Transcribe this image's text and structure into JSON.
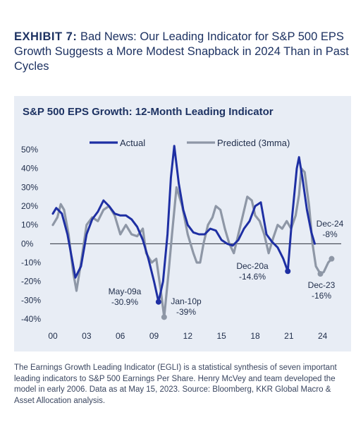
{
  "exhibit": {
    "label": "EXHIBIT 7:",
    "title": "Bad News: Our Leading Indicator for S&P 500 EPS Growth Suggests a More Modest Snapback in 2024 Than in Past Cycles"
  },
  "caption": "The Earnings Growth Leading Indicator (EGLI) is a statistical synthesis of seven important leading indicators to S&P 500 Earnings Per Share. Henry McVey and team developed the model in early 2006. Data as at May 15, 2023. Source: Bloomberg, KKR Global Macro & Asset Allocation analysis.",
  "chart_data": {
    "type": "line",
    "title": "S&P 500 EPS Growth: 12-Month Leading Indicator",
    "xlabel": "",
    "ylabel": "",
    "ylim": [
      -0.4,
      0.5
    ],
    "xlim": [
      2000,
      2025.4
    ],
    "x_ticks": [
      2000,
      2003,
      2006,
      2009,
      2012,
      2015,
      2018,
      2021,
      2024
    ],
    "x_tick_labels": [
      "00",
      "03",
      "06",
      "09",
      "12",
      "15",
      "18",
      "21",
      "24"
    ],
    "y_ticks": [
      -0.4,
      -0.3,
      -0.2,
      -0.1,
      0,
      0.1,
      0.2,
      0.3,
      0.4,
      0.5
    ],
    "y_tick_labels": [
      "-40%",
      "-30%",
      "-20%",
      "-10%",
      "0%",
      "10%",
      "20%",
      "30%",
      "40%",
      "50%"
    ],
    "grid": false,
    "legend": "top",
    "series": [
      {
        "name": "Actual",
        "color": "#1e2fa3",
        "points": [
          [
            2000.0,
            0.16
          ],
          [
            2000.3,
            0.19
          ],
          [
            2000.8,
            0.16
          ],
          [
            2001.3,
            0.05
          ],
          [
            2001.7,
            -0.08
          ],
          [
            2002.0,
            -0.18
          ],
          [
            2002.5,
            -0.12
          ],
          [
            2003.0,
            0.05
          ],
          [
            2003.5,
            0.13
          ],
          [
            2004.0,
            0.17
          ],
          [
            2004.5,
            0.23
          ],
          [
            2005.0,
            0.2
          ],
          [
            2005.5,
            0.16
          ],
          [
            2006.0,
            0.15
          ],
          [
            2006.5,
            0.15
          ],
          [
            2007.0,
            0.13
          ],
          [
            2007.5,
            0.09
          ],
          [
            2008.0,
            0.02
          ],
          [
            2008.5,
            -0.08
          ],
          [
            2009.0,
            -0.2
          ],
          [
            2009.4,
            -0.309
          ],
          [
            2009.8,
            -0.2
          ],
          [
            2010.2,
            0.05
          ],
          [
            2010.5,
            0.35
          ],
          [
            2010.8,
            0.52
          ],
          [
            2011.2,
            0.32
          ],
          [
            2011.6,
            0.18
          ],
          [
            2012.0,
            0.1
          ],
          [
            2012.5,
            0.06
          ],
          [
            2013.0,
            0.05
          ],
          [
            2013.5,
            0.05
          ],
          [
            2014.0,
            0.08
          ],
          [
            2014.5,
            0.07
          ],
          [
            2015.0,
            0.02
          ],
          [
            2015.5,
            0.0
          ],
          [
            2016.0,
            -0.01
          ],
          [
            2016.5,
            0.02
          ],
          [
            2017.0,
            0.08
          ],
          [
            2017.5,
            0.12
          ],
          [
            2018.0,
            0.2
          ],
          [
            2018.5,
            0.22
          ],
          [
            2019.0,
            0.05
          ],
          [
            2019.5,
            0.01
          ],
          [
            2020.0,
            -0.02
          ],
          [
            2020.5,
            -0.08
          ],
          [
            2020.9,
            -0.146
          ],
          [
            2021.3,
            0.15
          ],
          [
            2021.7,
            0.4
          ],
          [
            2021.9,
            0.46
          ],
          [
            2022.2,
            0.35
          ],
          [
            2022.6,
            0.18
          ],
          [
            2023.0,
            0.06
          ],
          [
            2023.3,
            0.0
          ]
        ]
      },
      {
        "name": "Predicted (3mma)",
        "color": "#8e97a6",
        "points": [
          [
            2000.0,
            0.1
          ],
          [
            2000.4,
            0.14
          ],
          [
            2000.7,
            0.21
          ],
          [
            2001.0,
            0.18
          ],
          [
            2001.4,
            0.05
          ],
          [
            2001.8,
            -0.15
          ],
          [
            2002.1,
            -0.25
          ],
          [
            2002.5,
            -0.1
          ],
          [
            2003.0,
            0.1
          ],
          [
            2003.5,
            0.14
          ],
          [
            2004.0,
            0.12
          ],
          [
            2004.5,
            0.18
          ],
          [
            2005.0,
            0.2
          ],
          [
            2005.5,
            0.15
          ],
          [
            2006.0,
            0.05
          ],
          [
            2006.5,
            0.1
          ],
          [
            2007.0,
            0.05
          ],
          [
            2007.5,
            0.04
          ],
          [
            2008.0,
            0.08
          ],
          [
            2008.3,
            -0.05
          ],
          [
            2008.8,
            -0.1
          ],
          [
            2009.2,
            -0.08
          ],
          [
            2009.6,
            -0.25
          ],
          [
            2009.9,
            -0.39
          ],
          [
            2010.3,
            -0.15
          ],
          [
            2010.6,
            0.05
          ],
          [
            2011.0,
            0.3
          ],
          [
            2011.5,
            0.2
          ],
          [
            2012.0,
            0.05
          ],
          [
            2012.5,
            -0.05
          ],
          [
            2012.8,
            -0.1
          ],
          [
            2013.1,
            -0.1
          ],
          [
            2013.4,
            0.0
          ],
          [
            2013.8,
            0.1
          ],
          [
            2014.2,
            0.14
          ],
          [
            2014.5,
            0.2
          ],
          [
            2014.9,
            0.18
          ],
          [
            2015.3,
            0.08
          ],
          [
            2015.7,
            0.0
          ],
          [
            2016.1,
            -0.05
          ],
          [
            2016.5,
            0.05
          ],
          [
            2016.9,
            0.15
          ],
          [
            2017.3,
            0.25
          ],
          [
            2017.7,
            0.23
          ],
          [
            2018.0,
            0.15
          ],
          [
            2018.4,
            0.12
          ],
          [
            2018.8,
            0.05
          ],
          [
            2019.2,
            -0.05
          ],
          [
            2019.6,
            0.03
          ],
          [
            2020.0,
            0.1
          ],
          [
            2020.4,
            0.08
          ],
          [
            2020.8,
            0.12
          ],
          [
            2021.2,
            0.08
          ],
          [
            2021.6,
            0.15
          ],
          [
            2021.9,
            0.26
          ],
          [
            2022.1,
            0.4
          ],
          [
            2022.4,
            0.38
          ],
          [
            2022.8,
            0.2
          ],
          [
            2023.1,
            0.0
          ],
          [
            2023.4,
            -0.12
          ],
          [
            2023.8,
            -0.16
          ],
          [
            2024.1,
            -0.15
          ],
          [
            2024.5,
            -0.1
          ],
          [
            2024.8,
            -0.08
          ]
        ]
      }
    ],
    "annotations": [
      {
        "line1": "May-09a",
        "line2": "-30.9%",
        "x": 2009.4,
        "y": -0.309,
        "series": 0
      },
      {
        "line1": "Jan-10p",
        "line2": "-39%",
        "x": 2009.9,
        "y": -0.39,
        "series": 1
      },
      {
        "line1": "Dec-20a",
        "line2": "-14.6%",
        "x": 2020.9,
        "y": -0.146,
        "series": 0
      },
      {
        "line1": "Dec-23",
        "line2": "-16%",
        "x": 2023.8,
        "y": -0.16,
        "series": 1
      },
      {
        "line1": "Dec-24",
        "line2": "-8%",
        "x": 2024.8,
        "y": -0.08,
        "series": 1
      }
    ]
  }
}
